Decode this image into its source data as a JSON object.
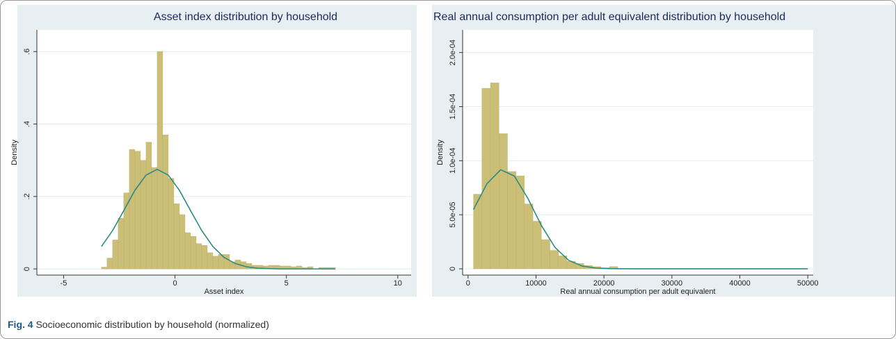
{
  "chart_data": [
    {
      "type": "histogram",
      "title": "Asset index distribution by household",
      "x_label": "Asset index",
      "y_label": "Density",
      "bins": [
        -3.3,
        -3.05,
        -2.8,
        -2.55,
        -2.3,
        -2.05,
        -1.8,
        -1.55,
        -1.3,
        -1.05,
        -0.8,
        -0.55,
        -0.3,
        -0.05,
        0.2,
        0.45,
        0.7,
        0.95,
        1.2,
        1.45,
        1.7,
        1.95,
        2.2,
        2.45,
        2.7,
        2.95,
        3.2,
        3.45,
        3.7,
        3.95,
        4.2,
        4.45,
        4.7,
        4.95,
        5.2,
        5.45,
        5.7,
        5.95,
        6.2,
        6.45,
        6.7,
        6.95,
        7.2
      ],
      "values": [
        0.005,
        0.03,
        0.08,
        0.14,
        0.21,
        0.33,
        0.325,
        0.3,
        0.35,
        0.28,
        0.6,
        0.37,
        0.25,
        0.18,
        0.15,
        0.1,
        0.09,
        0.07,
        0.065,
        0.045,
        0.035,
        0.04,
        0.04,
        0.02,
        0.025,
        0.02,
        0.015,
        0.01,
        0.01,
        0.008,
        0.01,
        0.01,
        0.008,
        0.008,
        0.006,
        0.008,
        0.004,
        0.006,
        0,
        0.004,
        0.004,
        0.004
      ],
      "color": "#cbbf78",
      "density_curve": {
        "x": [
          -3.3,
          -2.8,
          -2.3,
          -1.8,
          -1.3,
          -0.8,
          -0.3,
          0.2,
          0.7,
          1.2,
          1.7,
          2.2,
          2.7,
          3.2,
          3.7,
          4.2,
          4.7,
          7.2
        ],
        "values": [
          0.062,
          0.106,
          0.161,
          0.217,
          0.259,
          0.275,
          0.259,
          0.217,
          0.161,
          0.106,
          0.062,
          0.032,
          0.015,
          0.006,
          0.002,
          0.001,
          0,
          0
        ],
        "color": "#2b8a82"
      },
      "xlim": [
        -6.2,
        10.6
      ],
      "xticks": [
        -5,
        0,
        5,
        10
      ],
      "ylim": [
        -0.017,
        0.66
      ],
      "yticks": [
        0,
        {
          "value": 0.2,
          "label": ".2"
        },
        {
          "value": 0.4,
          "label": ".4"
        },
        {
          "value": 0.6,
          "label": ".6"
        }
      ],
      "grid": true
    },
    {
      "type": "histogram",
      "title": "Real  annual consumption per adult equivalent distribution by household",
      "x_label": "Real annual consumption per adult equivalent",
      "y_label": "Density",
      "bins": [
        800,
        2050,
        3300,
        4550,
        5800,
        7050,
        8300,
        9550,
        10800,
        12050,
        13300,
        14550,
        15800,
        17050,
        18300,
        19550,
        20800,
        22050
      ],
      "values": [
        6.9e-05,
        0.000167,
        0.000172,
        0.000125,
        9e-05,
        8.6e-05,
        6e-05,
        4.4e-05,
        2.7e-05,
        1.7e-05,
        1.2e-05,
        7e-06,
        5e-06,
        3e-06,
        2e-06,
        1e-06,
        2e-06
      ],
      "color": "#cbbf78",
      "density_curve": {
        "x": [
          800,
          2800,
          4800,
          6800,
          8800,
          10800,
          12800,
          14800,
          16800,
          18800,
          20800,
          24800,
          50000
        ],
        "values": [
          5.49e-05,
          7.89e-05,
          9.16e-05,
          8.59e-05,
          6.52e-05,
          4e-05,
          1.98e-05,
          7.9e-06,
          2.6e-06,
          7e-07,
          1.4e-07,
          0,
          0
        ],
        "color": "#2b8a82"
      },
      "xlim": [
        -800,
        50800
      ],
      "xticks": [
        0,
        10000,
        20000,
        30000,
        40000,
        50000
      ],
      "ylim": [
        -5.8e-06,
        0.000221
      ],
      "yticks": [
        0,
        {
          "value": 5e-05,
          "label": "5.0e-05"
        },
        {
          "value": 0.0001,
          "label": "1.0e-04"
        },
        {
          "value": 0.00015,
          "label": "1.5e-04"
        },
        {
          "value": 0.0002,
          "label": "2.0e-04"
        }
      ],
      "grid": true
    }
  ],
  "caption": {
    "label": "Fig. 4",
    "text": "Socioeconomic distribution by household (normalized)"
  }
}
